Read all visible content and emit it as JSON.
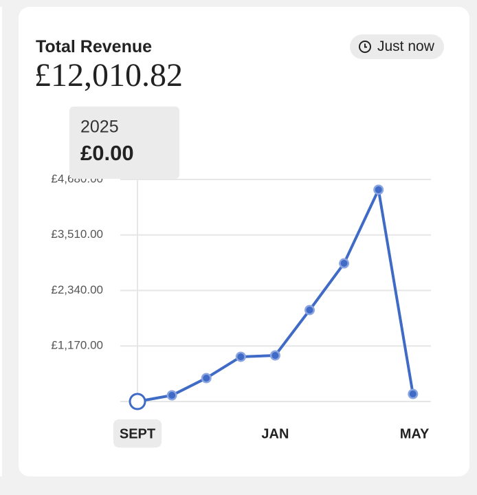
{
  "card": {
    "title": "Total Revenue",
    "amount": "£12,010.82",
    "badge": "Just now"
  },
  "chart_data": {
    "type": "line",
    "tooltip_title": "2025",
    "categories": [
      "SEPT",
      null,
      null,
      null,
      "JAN",
      null,
      null,
      null,
      "MAY"
    ],
    "series": [
      {
        "color": "#3f6ac6",
        "values": [
          0,
          130,
          493,
          942,
          971,
          1927,
          2912,
          4463,
          159
        ],
        "value_labels": [
          "£0.00",
          null,
          null,
          null,
          null,
          null,
          null,
          null,
          null
        ]
      }
    ],
    "ylim": [
      0,
      4680
    ],
    "yticks": [
      {
        "value": 1170,
        "label": "£1,170.00"
      },
      {
        "value": 2340,
        "label": "£2,340.00"
      },
      {
        "value": 3510,
        "label": "£3,510.00"
      },
      {
        "value": 4680,
        "label": "£4,680.00"
      }
    ],
    "grid": true
  }
}
